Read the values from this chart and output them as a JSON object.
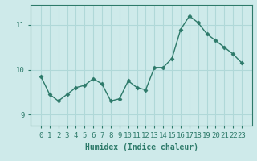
{
  "x": [
    0,
    1,
    2,
    3,
    4,
    5,
    6,
    7,
    8,
    9,
    10,
    11,
    12,
    13,
    14,
    15,
    16,
    17,
    18,
    19,
    20,
    21,
    22,
    23
  ],
  "y": [
    9.85,
    9.45,
    9.3,
    9.45,
    9.6,
    9.65,
    9.8,
    9.68,
    9.3,
    9.35,
    9.75,
    9.6,
    9.55,
    10.05,
    10.05,
    10.25,
    10.9,
    11.2,
    11.05,
    10.8,
    10.65,
    10.5,
    10.35,
    10.15
  ],
  "line_color": "#2d7a6a",
  "marker": "D",
  "marker_size": 2.5,
  "bg_color": "#ceeaea",
  "grid_color": "#b0d8d8",
  "xlabel": "Humidex (Indice chaleur)",
  "ylim": [
    8.75,
    11.45
  ],
  "yticks": [
    9,
    10,
    11
  ],
  "xticks": [
    0,
    1,
    2,
    3,
    4,
    5,
    6,
    7,
    8,
    9,
    10,
    11,
    12,
    13,
    14,
    15,
    16,
    17,
    18,
    19,
    20,
    21,
    22,
    23
  ],
  "xlabel_fontsize": 7,
  "tick_fontsize": 6.5,
  "line_width": 1.0,
  "spine_color": "#2d7a6a"
}
